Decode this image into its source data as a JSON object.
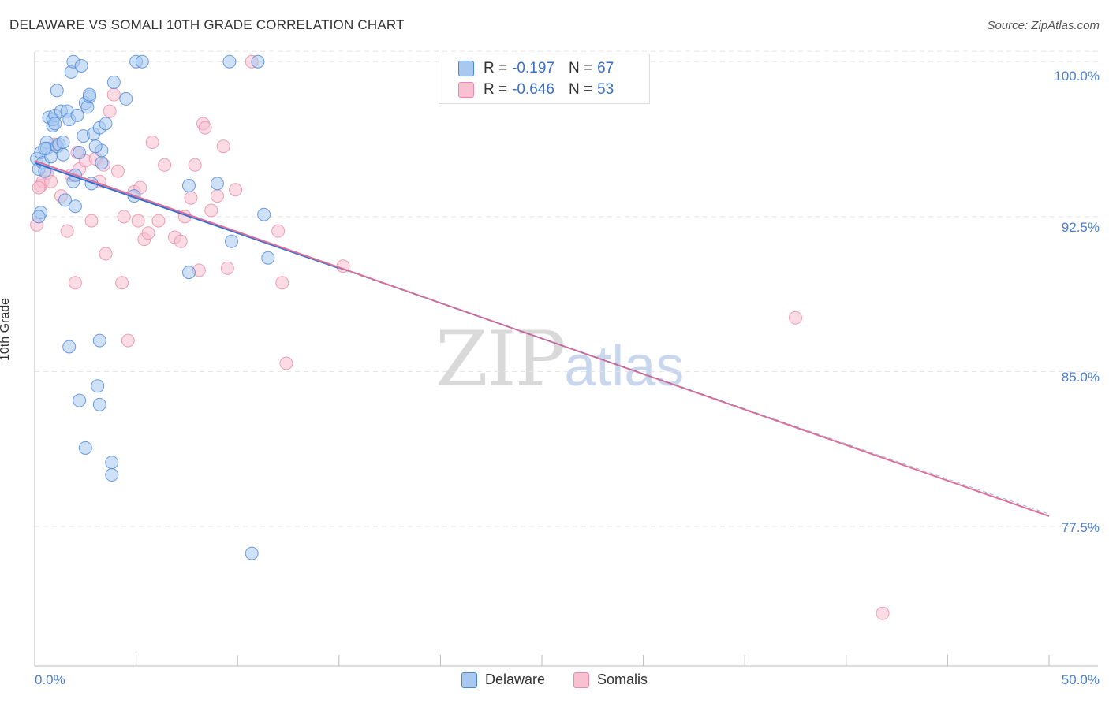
{
  "title": "DELAWARE VS SOMALI 10TH GRADE CORRELATION CHART",
  "source": "Source: ZipAtlas.com",
  "watermark_zip": "ZIP",
  "watermark_atlas": "atlas",
  "colors": {
    "delaware_fill": "#a8c8f0",
    "delaware_stroke": "#4a86d8",
    "delaware_line": "#2f6fcf",
    "somali_fill": "#f8c0d0",
    "somali_stroke": "#e88aa8",
    "somali_line": "#e06f98",
    "grid": "#e5e5e5",
    "tick_text": "#4a7fd0"
  },
  "legend": {
    "r_label": "R =",
    "n_label": "N =",
    "delaware_r": "-0.197",
    "delaware_n": "67",
    "somali_r": "-0.646",
    "somali_n": "53"
  },
  "chart_data": {
    "type": "scatter",
    "title": "DELAWARE VS SOMALI 10TH GRADE CORRELATION CHART",
    "xlabel": "",
    "ylabel": "10th Grade",
    "xlim": [
      0,
      50
    ],
    "ylim": [
      70.75,
      101.0
    ],
    "x_tick_labels": [
      "0.0%",
      "50.0%"
    ],
    "y_ticks": [
      77.5,
      85.0,
      92.5,
      100.0
    ],
    "y_tick_labels": [
      "77.5%",
      "85.0%",
      "92.5%",
      "100.0%"
    ],
    "grid": true,
    "series": [
      {
        "name": "Delaware",
        "trend": {
          "x0": 0,
          "y0": 95.1,
          "x1": 15,
          "y1": 90.0
        },
        "points": [
          [
            0.1,
            95.3
          ],
          [
            0.2,
            94.8
          ],
          [
            0.3,
            95.6
          ],
          [
            0.3,
            92.7
          ],
          [
            0.4,
            95.1
          ],
          [
            0.5,
            94.7
          ],
          [
            0.6,
            96.1
          ],
          [
            0.6,
            95.8
          ],
          [
            0.7,
            97.3
          ],
          [
            0.8,
            95.4
          ],
          [
            0.9,
            96.9
          ],
          [
            0.9,
            97.2
          ],
          [
            1.0,
            97.4
          ],
          [
            1.0,
            97.0
          ],
          [
            1.1,
            98.6
          ],
          [
            1.1,
            95.9
          ],
          [
            1.2,
            96.0
          ],
          [
            1.3,
            97.6
          ],
          [
            1.4,
            95.5
          ],
          [
            1.5,
            93.3
          ],
          [
            1.6,
            97.6
          ],
          [
            1.7,
            97.2
          ],
          [
            1.8,
            99.5
          ],
          [
            1.9,
            100.0
          ],
          [
            1.9,
            94.2
          ],
          [
            2.0,
            93.0
          ],
          [
            2.1,
            97.4
          ],
          [
            2.2,
            95.6
          ],
          [
            2.3,
            99.8
          ],
          [
            2.4,
            96.4
          ],
          [
            2.5,
            98.0
          ],
          [
            2.6,
            97.8
          ],
          [
            2.7,
            98.3
          ],
          [
            2.7,
            98.4
          ],
          [
            2.8,
            94.1
          ],
          [
            2.9,
            96.5
          ],
          [
            3.2,
            96.8
          ],
          [
            3.3,
            95.1
          ],
          [
            3.3,
            95.7
          ],
          [
            3.5,
            97.0
          ],
          [
            3.9,
            99.0
          ],
          [
            4.5,
            98.2
          ],
          [
            4.9,
            93.5
          ],
          [
            5.0,
            100.0
          ],
          [
            5.3,
            100.0
          ],
          [
            7.6,
            94.0
          ],
          [
            7.6,
            89.8
          ],
          [
            9.0,
            94.1
          ],
          [
            9.6,
            100.0
          ],
          [
            9.7,
            91.3
          ],
          [
            11.0,
            100.0
          ],
          [
            11.3,
            92.6
          ],
          [
            11.5,
            90.5
          ],
          [
            1.7,
            86.2
          ],
          [
            2.2,
            83.6
          ],
          [
            3.2,
            86.5
          ],
          [
            3.1,
            84.3
          ],
          [
            3.2,
            83.4
          ],
          [
            2.5,
            81.3
          ],
          [
            3.8,
            80.6
          ],
          [
            3.8,
            80.0
          ],
          [
            10.7,
            76.2
          ],
          [
            0.2,
            92.5
          ],
          [
            0.5,
            95.8
          ],
          [
            1.4,
            96.1
          ],
          [
            3.0,
            95.9
          ],
          [
            2.0,
            94.5
          ]
        ]
      },
      {
        "name": "Somalis",
        "trend": {
          "x0": 0,
          "y0": 95.2,
          "x1": 50,
          "y1": 78.0
        },
        "points": [
          [
            0.1,
            92.1
          ],
          [
            0.3,
            94.0
          ],
          [
            0.4,
            94.2
          ],
          [
            0.6,
            94.6
          ],
          [
            0.8,
            94.2
          ],
          [
            1.0,
            96.0
          ],
          [
            1.3,
            93.5
          ],
          [
            1.6,
            91.8
          ],
          [
            1.8,
            94.5
          ],
          [
            2.0,
            89.3
          ],
          [
            2.1,
            95.6
          ],
          [
            2.2,
            94.8
          ],
          [
            2.5,
            95.2
          ],
          [
            2.8,
            92.3
          ],
          [
            3.0,
            95.3
          ],
          [
            3.2,
            94.2
          ],
          [
            3.4,
            95.0
          ],
          [
            3.5,
            90.7
          ],
          [
            3.7,
            97.6
          ],
          [
            3.9,
            98.4
          ],
          [
            4.1,
            94.7
          ],
          [
            4.3,
            89.3
          ],
          [
            4.4,
            92.5
          ],
          [
            4.6,
            86.5
          ],
          [
            4.9,
            93.7
          ],
          [
            5.1,
            92.3
          ],
          [
            5.2,
            93.9
          ],
          [
            5.4,
            91.4
          ],
          [
            5.6,
            91.7
          ],
          [
            5.8,
            96.1
          ],
          [
            6.1,
            92.3
          ],
          [
            6.4,
            95.0
          ],
          [
            6.9,
            91.5
          ],
          [
            7.2,
            91.3
          ],
          [
            7.4,
            92.5
          ],
          [
            7.7,
            93.4
          ],
          [
            7.9,
            95.0
          ],
          [
            8.1,
            89.9
          ],
          [
            8.3,
            97.0
          ],
          [
            8.4,
            96.8
          ],
          [
            8.7,
            92.8
          ],
          [
            9.0,
            93.5
          ],
          [
            9.3,
            95.9
          ],
          [
            9.5,
            90.0
          ],
          [
            9.9,
            93.8
          ],
          [
            10.7,
            100.0
          ],
          [
            12.0,
            91.8
          ],
          [
            12.2,
            89.3
          ],
          [
            12.4,
            85.4
          ],
          [
            15.2,
            90.1
          ],
          [
            37.5,
            87.6
          ],
          [
            41.8,
            73.3
          ],
          [
            0.2,
            93.9
          ]
        ]
      }
    ]
  }
}
